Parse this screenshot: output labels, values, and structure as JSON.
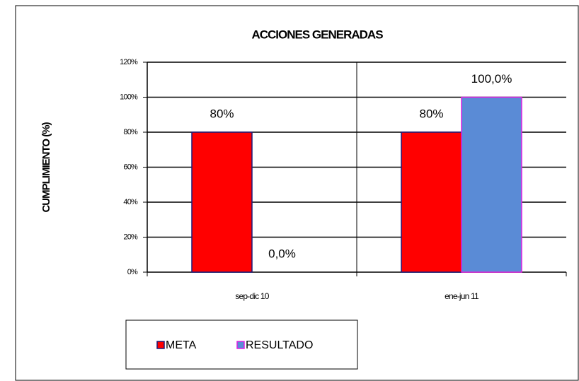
{
  "chart_data": {
    "type": "bar",
    "title": "ACCIONES GENERADAS",
    "y_label": "CUMPLIMIENTO (%)",
    "categories": [
      "sep-dic 10",
      "ene-jun 11"
    ],
    "series": [
      {
        "name": "META",
        "color": "#ff0000",
        "border": "#1a1a7a",
        "values": [
          80,
          80
        ],
        "value_labels": [
          "80%",
          "80%"
        ]
      },
      {
        "name": "RESULTADO",
        "color": "#5a8bd6",
        "border": "#e020e0",
        "values": [
          0,
          100
        ],
        "value_labels": [
          "0,0%",
          "100,0%"
        ]
      }
    ],
    "ylim": [
      0,
      120
    ],
    "yticks": [
      {
        "value": 0,
        "label": "0%"
      },
      {
        "value": 20,
        "label": "20%"
      },
      {
        "value": 40,
        "label": "40%"
      },
      {
        "value": 60,
        "label": "60%"
      },
      {
        "value": 80,
        "label": "80%"
      },
      {
        "value": 100,
        "label": "100%"
      },
      {
        "value": 120,
        "label": "120%"
      }
    ],
    "grid": true,
    "legend": "bottom"
  }
}
